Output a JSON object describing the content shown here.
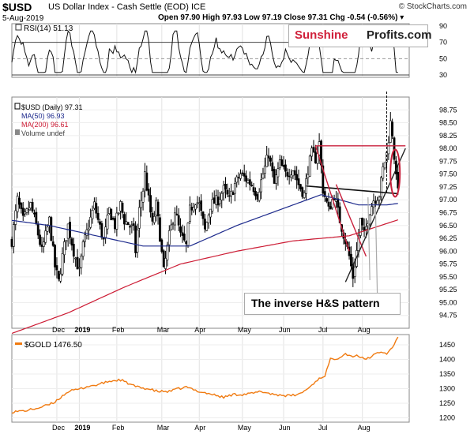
{
  "header": {
    "symbol": "$USD",
    "name": "US Dollar Index - Cash Settle (EOD)  ICE",
    "date": "5-Aug-2019",
    "ohlc": "Open 97.90  High 97.93  Low 97.19  Close 97.31  Chg -0.54 (-0.56%) ▾",
    "credit": "© StockCharts.com"
  },
  "logo": {
    "part1": "Sunshine",
    "part2": "Profits.com"
  },
  "annotation": "The inverse H&S pattern",
  "colors": {
    "price": "#000000",
    "ma50": "#1d2a8c",
    "ma200": "#cc1a33",
    "gold": "#f07a10",
    "pattern": "#c8203c"
  },
  "chart_data": [
    {
      "type": "line",
      "panel": "rsi",
      "legend": [
        "RSI(14) 51.13"
      ],
      "ylim": [
        30,
        90
      ],
      "yticks": [
        "90",
        "70",
        "50",
        "30"
      ],
      "reference_lines": [
        70,
        30
      ]
    },
    {
      "type": "bar",
      "panel": "price",
      "title": "$USD (Daily) 97.31",
      "legend": [
        "$USD (Daily) 97.31",
        "MA(50) 96.93",
        "MA(200) 96.61",
        "Volume undef"
      ],
      "xlabels": [
        "Dec",
        "2019",
        "Feb",
        "Mar",
        "Apr",
        "May",
        "Jun",
        "Jul",
        "Aug"
      ],
      "ylim": [
        94.5,
        99.0
      ],
      "yticks": [
        "98.75",
        "98.50",
        "98.25",
        "98.00",
        "97.75",
        "97.50",
        "97.25",
        "97.00",
        "96.75",
        "96.50",
        "96.25",
        "96.00",
        "95.75",
        "95.50",
        "95.25",
        "95.00",
        "94.75"
      ],
      "close_anchors": [
        [
          0,
          96.2
        ],
        [
          3,
          97.0
        ],
        [
          6,
          96.6
        ],
        [
          10,
          96.9
        ],
        [
          13,
          96.5
        ],
        [
          16,
          96.0
        ],
        [
          20,
          96.6
        ],
        [
          23,
          95.7
        ],
        [
          25,
          95.4
        ],
        [
          27,
          95.9
        ],
        [
          30,
          96.5
        ],
        [
          33,
          96.0
        ],
        [
          36,
          95.6
        ],
        [
          38,
          96.1
        ],
        [
          41,
          96.5
        ],
        [
          44,
          96.9
        ],
        [
          46,
          96.6
        ],
        [
          49,
          96.2
        ],
        [
          52,
          96.8
        ],
        [
          55,
          96.5
        ],
        [
          58,
          96.9
        ],
        [
          60,
          96.6
        ],
        [
          63,
          96.5
        ],
        [
          65,
          96.4
        ],
        [
          66,
          96.0
        ],
        [
          68,
          96.8
        ],
        [
          70,
          97.2
        ],
        [
          71,
          97.5
        ],
        [
          73,
          97.0
        ],
        [
          75,
          96.5
        ],
        [
          77,
          96.9
        ],
        [
          79,
          96.3
        ],
        [
          81,
          95.6
        ],
        [
          84,
          96.3
        ],
        [
          87,
          96.8
        ],
        [
          90,
          96.3
        ],
        [
          93,
          96.1
        ],
        [
          95,
          96.8
        ],
        [
          98,
          97.0
        ],
        [
          100,
          96.9
        ],
        [
          103,
          96.4
        ],
        [
          106,
          96.9
        ],
        [
          110,
          97.0
        ],
        [
          113,
          97.2
        ],
        [
          116,
          97.0
        ],
        [
          119,
          97.3
        ],
        [
          122,
          97.5
        ],
        [
          125,
          97.4
        ],
        [
          128,
          97.3
        ],
        [
          131,
          97.1
        ],
        [
          134,
          97.5
        ],
        [
          137,
          97.9
        ],
        [
          140,
          97.3
        ],
        [
          143,
          97.7
        ],
        [
          146,
          97.5
        ],
        [
          150,
          97.6
        ],
        [
          153,
          97.3
        ],
        [
          156,
          97.1
        ],
        [
          158,
          97.6
        ],
        [
          160,
          97.9
        ],
        [
          162,
          97.8
        ],
        [
          164,
          98.1
        ],
        [
          166,
          97.2
        ],
        [
          169,
          96.8
        ],
        [
          172,
          97.1
        ],
        [
          175,
          96.6
        ],
        [
          178,
          96.2
        ],
        [
          180,
          95.9
        ],
        [
          182,
          95.5
        ],
        [
          184,
          96.0
        ],
        [
          186,
          96.6
        ],
        [
          188,
          96.3
        ],
        [
          191,
          96.8
        ],
        [
          193,
          97.0
        ],
        [
          196,
          97.1
        ],
        [
          198,
          97.6
        ],
        [
          200,
          97.9
        ],
        [
          202,
          98.5
        ],
        [
          203,
          98.3
        ],
        [
          205,
          97.4
        ],
        [
          206,
          97.31
        ]
      ],
      "ma50": [
        [
          0,
          96.6
        ],
        [
          20,
          96.5
        ],
        [
          45,
          96.3
        ],
        [
          70,
          96.1
        ],
        [
          95,
          96.1
        ],
        [
          120,
          96.5
        ],
        [
          150,
          96.9
        ],
        [
          165,
          97.1
        ],
        [
          185,
          96.9
        ],
        [
          200,
          96.9
        ],
        [
          206,
          96.93
        ]
      ],
      "ma200": [
        [
          0,
          94.4
        ],
        [
          30,
          94.8
        ],
        [
          60,
          95.3
        ],
        [
          90,
          95.75
        ],
        [
          120,
          96.0
        ],
        [
          150,
          96.2
        ],
        [
          180,
          96.3
        ],
        [
          206,
          96.61
        ]
      ],
      "pattern_lines": [
        {
          "name": "neckline-upper",
          "points": [
            [
              162,
              98.05
            ],
            [
              210,
              98.05
            ]
          ]
        },
        {
          "name": "neckline-lower",
          "points": [
            [
              157,
              97.27
            ],
            [
              206,
              97.12
            ]
          ]
        },
        {
          "name": "head-left-leg",
          "points": [
            [
              162,
              98.05
            ],
            [
              180,
              96.0
            ]
          ]
        },
        {
          "name": "head-right-leg",
          "points": [
            [
              173,
              97.3
            ],
            [
              189,
              95.9
            ]
          ]
        },
        {
          "name": "support-rising",
          "points": [
            [
              178,
              95.4
            ],
            [
              210,
              98.0
            ]
          ]
        }
      ]
    },
    {
      "type": "line",
      "panel": "gold",
      "legend": [
        "$GOLD 1476.50"
      ],
      "xlabels": [
        "Dec",
        "2019",
        "Feb",
        "Mar",
        "Apr",
        "May",
        "Jun",
        "Jul",
        "Aug"
      ],
      "ylim": [
        1185,
        1485
      ],
      "yticks": [
        "1450",
        "1400",
        "1350",
        "1300",
        "1250",
        "1200"
      ],
      "values": [
        [
          0,
          1220
        ],
        [
          8,
          1225
        ],
        [
          15,
          1235
        ],
        [
          22,
          1250
        ],
        [
          27,
          1275
        ],
        [
          30,
          1290
        ],
        [
          36,
          1298
        ],
        [
          40,
          1307
        ],
        [
          45,
          1312
        ],
        [
          52,
          1325
        ],
        [
          58,
          1330
        ],
        [
          63,
          1315
        ],
        [
          67,
          1305
        ],
        [
          72,
          1300
        ],
        [
          78,
          1290
        ],
        [
          84,
          1290
        ],
        [
          88,
          1298
        ],
        [
          93,
          1305
        ],
        [
          100,
          1290
        ],
        [
          107,
          1280
        ],
        [
          113,
          1270
        ],
        [
          118,
          1280
        ],
        [
          123,
          1280
        ],
        [
          128,
          1283
        ],
        [
          133,
          1290
        ],
        [
          140,
          1280
        ],
        [
          148,
          1275
        ],
        [
          153,
          1280
        ],
        [
          158,
          1300
        ],
        [
          163,
          1330
        ],
        [
          167,
          1345
        ],
        [
          170,
          1400
        ],
        [
          174,
          1405
        ],
        [
          178,
          1420
        ],
        [
          181,
          1410
        ],
        [
          184,
          1415
        ],
        [
          188,
          1400
        ],
        [
          192,
          1410
        ],
        [
          196,
          1425
        ],
        [
          200,
          1420
        ],
        [
          203,
          1440
        ],
        [
          205,
          1465
        ],
        [
          206,
          1476.5
        ]
      ]
    }
  ]
}
